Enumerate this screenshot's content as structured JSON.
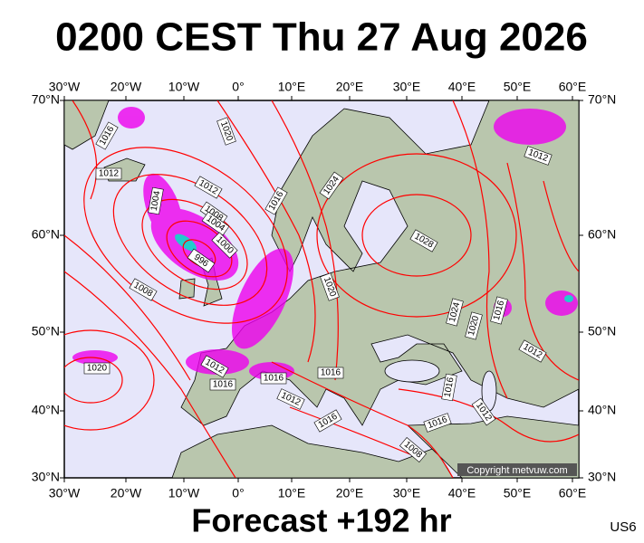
{
  "title": "0200 CEST Thu 27 Aug 2026",
  "footer": "Forecast +192 hr",
  "code": "US6",
  "copyright": "Copyright metvuw.com",
  "map": {
    "longitude_labels": [
      "30°W",
      "20°W",
      "10°W",
      "0°",
      "10°E",
      "20°E",
      "30°E",
      "40°E",
      "50°E",
      "60°E"
    ],
    "latitude_labels": [
      "70°N",
      "60°N",
      "50°N",
      "40°N",
      "30°N"
    ],
    "isobar_labels": [
      "1016",
      "1012",
      "1020",
      "1012",
      "1004",
      "1008",
      "1004",
      "1016",
      "1024",
      "1000",
      "996",
      "1028",
      "1012",
      "1008",
      "1020",
      "1024",
      "1020",
      "1016",
      "1020",
      "1012",
      "1016",
      "1016",
      "1016",
      "1012",
      "1016",
      "1012",
      "1012",
      "1016",
      "1016",
      "1008"
    ]
  }
}
